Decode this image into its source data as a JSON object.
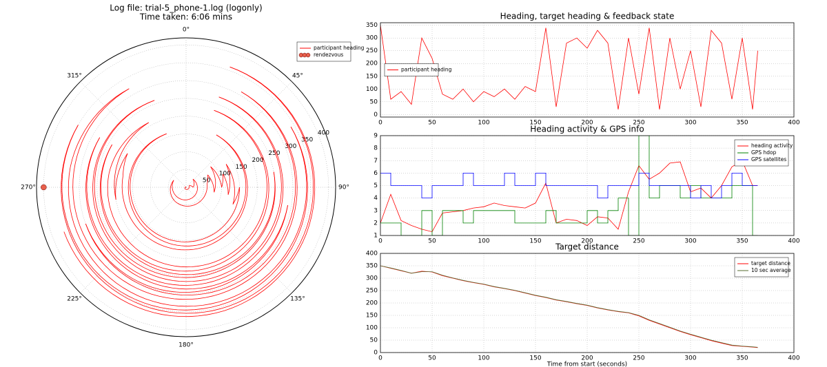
{
  "chart_data": [
    {
      "type": "polar",
      "title": "Log file: trial-5_phone-1.log (logonly)",
      "subtitle": "Time taken: 6:06 mins",
      "rlim": [
        0,
        420
      ],
      "rticks": [
        50,
        100,
        150,
        200,
        250,
        300,
        350,
        400
      ],
      "thetaticks": [
        {
          "value": 0,
          "label": "0°"
        },
        {
          "value": 45,
          "label": "45°"
        },
        {
          "value": 90,
          "label": "90°"
        },
        {
          "value": 135,
          "label": "135°"
        },
        {
          "value": 180,
          "label": "180°"
        },
        {
          "value": 225,
          "label": "225°"
        },
        {
          "value": 270,
          "label": "270°"
        },
        {
          "value": 315,
          "label": "315°"
        }
      ],
      "grid": true,
      "legend": "upper right",
      "series": [
        {
          "name": "participant heading",
          "color": "#ff0000",
          "r": [
            0,
            10,
            20,
            30,
            40,
            50,
            60,
            70,
            80,
            90,
            100,
            110,
            120,
            130,
            140,
            150,
            160,
            170,
            180,
            190,
            200,
            210,
            220,
            230,
            240,
            250,
            260,
            270,
            280,
            290,
            300,
            310,
            320,
            330,
            340,
            350,
            360,
            365
          ],
          "theta": [
            350,
            60,
            90,
            40,
            300,
            220,
            80,
            60,
            100,
            50,
            90,
            70,
            100,
            60,
            110,
            90,
            340,
            30,
            280,
            300,
            260,
            330,
            280,
            20,
            300,
            80,
            340,
            20,
            300,
            100,
            250,
            30,
            330,
            280,
            60,
            300,
            20,
            250
          ]
        },
        {
          "name": "rendezvous",
          "color": "#e8604c",
          "marker": "o",
          "r": [
            400
          ],
          "theta": [
            270
          ]
        }
      ]
    },
    {
      "type": "line",
      "title": "Heading, target heading & feedback state",
      "xlim": [
        0,
        400
      ],
      "xticks": [
        0,
        50,
        100,
        150,
        200,
        250,
        300,
        350,
        400
      ],
      "ylim": [
        -10,
        360
      ],
      "yticks": [
        0,
        50,
        100,
        150,
        200,
        250,
        300,
        350
      ],
      "grid": true,
      "legend": "center left",
      "x": [
        0,
        10,
        20,
        30,
        40,
        50,
        60,
        70,
        80,
        90,
        100,
        110,
        120,
        130,
        140,
        150,
        160,
        170,
        180,
        190,
        200,
        210,
        220,
        230,
        240,
        250,
        260,
        270,
        280,
        290,
        300,
        310,
        320,
        330,
        340,
        350,
        360,
        365
      ],
      "series": [
        {
          "name": "participant heading",
          "color": "#ff0000",
          "values": [
            350,
            60,
            90,
            40,
            300,
            220,
            80,
            60,
            100,
            50,
            90,
            70,
            100,
            60,
            110,
            90,
            340,
            30,
            280,
            300,
            260,
            330,
            280,
            20,
            300,
            80,
            340,
            20,
            300,
            100,
            250,
            30,
            330,
            280,
            60,
            300,
            20,
            250
          ]
        }
      ]
    },
    {
      "type": "line",
      "title": "Heading activity & GPS info",
      "xlim": [
        0,
        400
      ],
      "xticks": [
        0,
        50,
        100,
        150,
        200,
        250,
        300,
        350,
        400
      ],
      "ylim": [
        1,
        9
      ],
      "yticks": [
        1,
        2,
        3,
        4,
        5,
        6,
        7,
        8,
        9
      ],
      "grid": true,
      "legend": "upper right",
      "x": [
        0,
        10,
        20,
        30,
        40,
        50,
        60,
        70,
        80,
        90,
        100,
        110,
        120,
        130,
        140,
        150,
        160,
        170,
        180,
        190,
        200,
        210,
        220,
        230,
        240,
        250,
        260,
        270,
        280,
        290,
        300,
        310,
        320,
        330,
        340,
        350,
        360,
        365
      ],
      "series": [
        {
          "name": "heading activity",
          "color": "#ff0000",
          "values": [
            2,
            4.3,
            2.2,
            1.8,
            1.5,
            1.3,
            2.8,
            2.9,
            3.0,
            3.2,
            3.3,
            3.6,
            3.4,
            3.3,
            3.2,
            3.6,
            5.2,
            2.0,
            2.3,
            2.2,
            1.8,
            2.5,
            2.4,
            1.5,
            4.5,
            6.6,
            5.5,
            6.0,
            6.8,
            6.9,
            4.5,
            4.8,
            4.0,
            5.0,
            6.5,
            7.0,
            5.0,
            5.0
          ]
        },
        {
          "name": "GPS hdop",
          "color": "#008000",
          "drawstyle": "steps-post",
          "values": [
            2,
            2,
            1,
            1,
            3,
            1,
            3,
            3,
            2,
            3,
            3,
            3,
            3,
            2,
            2,
            2,
            3,
            2,
            2,
            2,
            3,
            2,
            3,
            4,
            1,
            9,
            4,
            5,
            5,
            4,
            5,
            4,
            4,
            4,
            5,
            5,
            1,
            1
          ]
        },
        {
          "name": "GPS satellites",
          "color": "#0000ff",
          "drawstyle": "steps-post",
          "values": [
            6,
            5,
            5,
            5,
            4,
            5,
            5,
            5,
            6,
            5,
            5,
            5,
            6,
            5,
            5,
            6,
            5,
            5,
            5,
            5,
            5,
            4,
            5,
            5,
            5,
            6,
            5,
            5,
            5,
            5,
            4,
            5,
            4,
            5,
            6,
            5,
            5,
            5
          ]
        }
      ]
    },
    {
      "type": "line",
      "title": "Target distance",
      "xlabel": "Time from start (seconds)",
      "xlim": [
        0,
        400
      ],
      "xticks": [
        0,
        50,
        100,
        150,
        200,
        250,
        300,
        350,
        400
      ],
      "ylim": [
        0,
        400
      ],
      "yticks": [
        0,
        50,
        100,
        150,
        200,
        250,
        300,
        350,
        400
      ],
      "grid": true,
      "legend": "upper right",
      "x": [
        0,
        10,
        20,
        30,
        40,
        50,
        60,
        70,
        80,
        90,
        100,
        110,
        120,
        130,
        140,
        150,
        160,
        170,
        180,
        190,
        200,
        210,
        220,
        230,
        240,
        250,
        260,
        270,
        280,
        290,
        300,
        310,
        320,
        330,
        340,
        350,
        360,
        365
      ],
      "series": [
        {
          "name": "target distance",
          "color": "#ff0000",
          "values": [
            350,
            340,
            330,
            320,
            328,
            325,
            310,
            300,
            290,
            282,
            275,
            265,
            258,
            250,
            240,
            230,
            222,
            212,
            205,
            197,
            190,
            180,
            172,
            165,
            160,
            148,
            130,
            115,
            100,
            85,
            72,
            60,
            48,
            38,
            28,
            25,
            22,
            20
          ]
        },
        {
          "name": "10 sec average",
          "color": "#556b2f",
          "values": [
            350,
            341,
            331,
            320,
            326,
            326,
            312,
            301,
            291,
            283,
            276,
            266,
            259,
            251,
            241,
            231,
            223,
            213,
            206,
            198,
            191,
            181,
            173,
            166,
            161,
            150,
            132,
            117,
            102,
            87,
            74,
            62,
            50,
            40,
            30,
            26,
            23,
            21
          ]
        }
      ]
    }
  ]
}
